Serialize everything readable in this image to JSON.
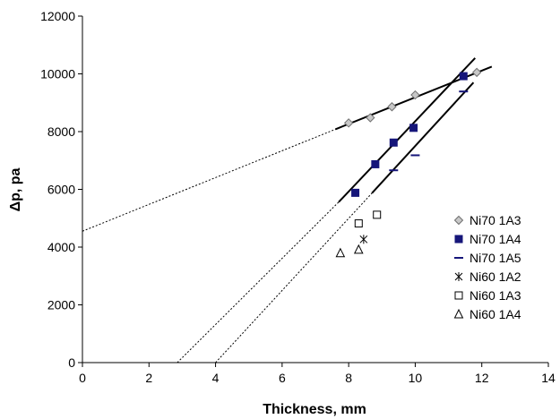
{
  "chart_data": {
    "type": "scatter",
    "title": "",
    "xlabel": "Thickness, mm",
    "ylabel": "Δp, pa",
    "xlim": [
      0,
      14
    ],
    "ylim": [
      0,
      12000
    ],
    "xticks": [
      "0",
      "2",
      "4",
      "6",
      "8",
      "10",
      "12",
      "14"
    ],
    "yticks": [
      "0",
      "2000",
      "4000",
      "6000",
      "8000",
      "10000",
      "12000"
    ],
    "grid": false,
    "legend_position": "right",
    "series": [
      {
        "name": "Ni70 1A3",
        "marker": "diamond",
        "color": "#a0a0a0",
        "x": [
          8.0,
          8.65,
          9.3,
          10.0,
          11.85
        ],
        "y": [
          8300,
          8480,
          8860,
          9270,
          10050
        ]
      },
      {
        "name": "Ni70 1A4",
        "marker": "square",
        "color": "#16167a",
        "x": [
          8.2,
          8.8,
          9.35,
          9.95,
          11.45
        ],
        "y": [
          5880,
          6870,
          7620,
          8130,
          9920
        ]
      },
      {
        "name": "Ni70 1A5",
        "marker": "dash",
        "color": "#16167a",
        "x": [
          9.35,
          10.0,
          11.45
        ],
        "y": [
          6660,
          7180,
          9390
        ]
      },
      {
        "name": "Ni60 1A2",
        "marker": "star",
        "color": "#000000",
        "x": [
          8.45
        ],
        "y": [
          4270
        ]
      },
      {
        "name": "Ni60 1A3",
        "marker": "square-open",
        "color": "#000000",
        "x": [
          8.3,
          8.85
        ],
        "y": [
          4820,
          5120
        ]
      },
      {
        "name": "Ni60 1A4",
        "marker": "triangle-open",
        "color": "#000000",
        "x": [
          7.75,
          8.3
        ],
        "y": [
          3790,
          3910
        ]
      }
    ],
    "fit_lines": [
      {
        "style": "solid",
        "points": [
          [
            7.6,
            8080
          ],
          [
            12.3,
            10250
          ]
        ]
      },
      {
        "style": "dotted",
        "points": [
          [
            0,
            4550
          ],
          [
            7.6,
            8080
          ]
        ]
      },
      {
        "style": "solid",
        "points": [
          [
            7.7,
            5560
          ],
          [
            11.8,
            10550
          ]
        ]
      },
      {
        "style": "dotted",
        "points": [
          [
            2.85,
            0
          ],
          [
            7.7,
            5560
          ]
        ]
      },
      {
        "style": "solid",
        "points": [
          [
            8.7,
            5870
          ],
          [
            11.75,
            9700
          ]
        ]
      },
      {
        "style": "dotted",
        "points": [
          [
            4.0,
            0
          ],
          [
            8.7,
            5870
          ]
        ]
      }
    ]
  }
}
